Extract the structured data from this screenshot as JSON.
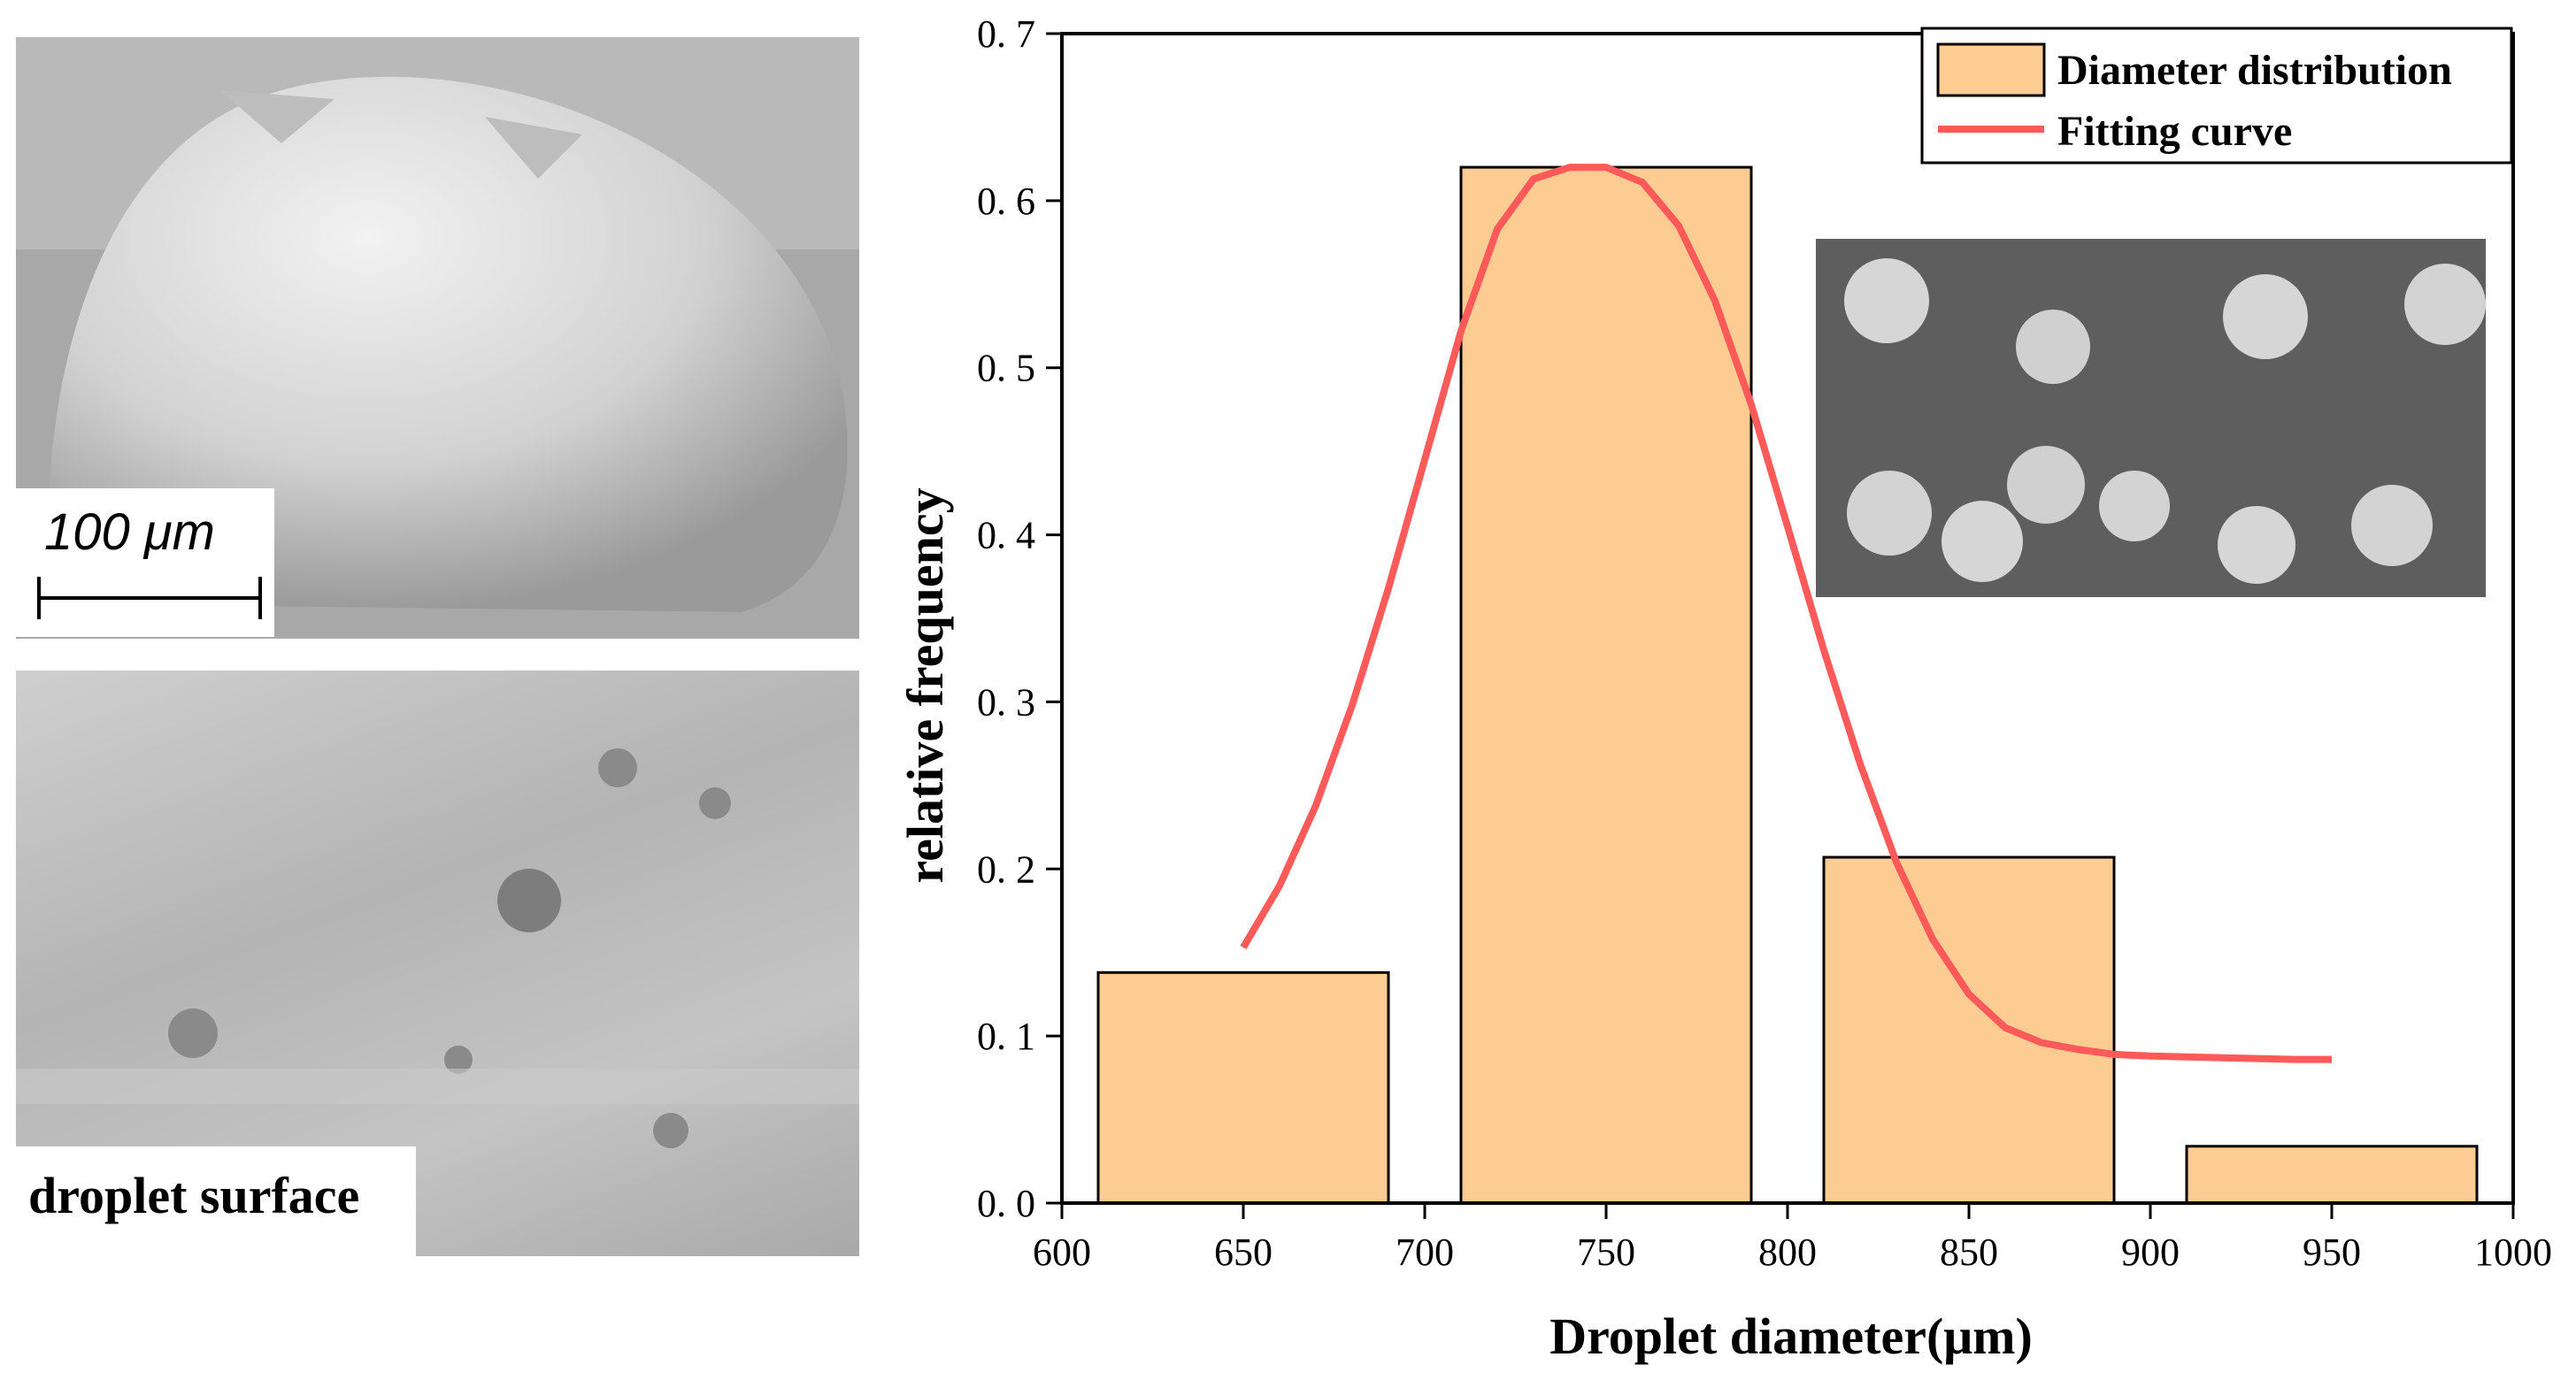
{
  "figure": {
    "left_panel_top": {
      "scale_label": "100 μm"
    },
    "left_panel_bottom": {
      "caption": "droplet surface"
    }
  },
  "chart_data": {
    "type": "bar",
    "xlabel": "Droplet diameter(μm)",
    "ylabel": "relative frequency",
    "xlim": [
      600,
      1000
    ],
    "ylim": [
      0,
      0.7
    ],
    "xticks": [
      600,
      650,
      700,
      750,
      800,
      850,
      900,
      950,
      1000
    ],
    "yticks": [
      0.0,
      0.1,
      0.2,
      0.3,
      0.4,
      0.5,
      0.6,
      0.7
    ],
    "ytick_labels": [
      "0. 0",
      "0. 1",
      "0. 2",
      "0. 3",
      "0. 4",
      "0. 5",
      "0. 6",
      "0. 7"
    ],
    "bins": [
      {
        "from": 610,
        "to": 690,
        "value": 0.138
      },
      {
        "from": 710,
        "to": 790,
        "value": 0.62
      },
      {
        "from": 810,
        "to": 890,
        "value": 0.207
      },
      {
        "from": 910,
        "to": 990,
        "value": 0.034
      }
    ],
    "fit_curve": {
      "points": [
        [
          650,
          0.153
        ],
        [
          660,
          0.19
        ],
        [
          670,
          0.238
        ],
        [
          680,
          0.298
        ],
        [
          690,
          0.368
        ],
        [
          700,
          0.445
        ],
        [
          710,
          0.522
        ],
        [
          720,
          0.583
        ],
        [
          730,
          0.613
        ],
        [
          740,
          0.62
        ],
        [
          750,
          0.62
        ],
        [
          760,
          0.611
        ],
        [
          770,
          0.585
        ],
        [
          780,
          0.54
        ],
        [
          790,
          0.478
        ],
        [
          800,
          0.405
        ],
        [
          810,
          0.331
        ],
        [
          820,
          0.263
        ],
        [
          830,
          0.204
        ],
        [
          840,
          0.158
        ],
        [
          850,
          0.125
        ],
        [
          860,
          0.105
        ],
        [
          870,
          0.096
        ],
        [
          880,
          0.092
        ],
        [
          890,
          0.089
        ],
        [
          900,
          0.088
        ],
        [
          920,
          0.087
        ],
        [
          940,
          0.086
        ],
        [
          950,
          0.086
        ]
      ]
    },
    "series": [
      {
        "name": "Diameter distribution",
        "color": "#fdcc92",
        "edge": "#000000"
      },
      {
        "name": "Fitting curve",
        "color": "#ff5a5a"
      }
    ],
    "legend_position": "top-right",
    "grid": false,
    "inset": "SEM image of droplets (top-right)"
  }
}
